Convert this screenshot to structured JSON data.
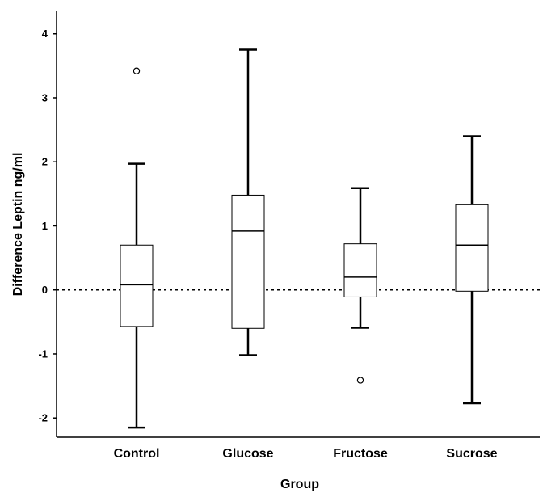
{
  "chart_data": {
    "type": "boxplot",
    "xlabel": "Group",
    "ylabel": "Difference Leptin ng/ml",
    "ylim": [
      -2.3,
      4.35
    ],
    "yticks": [
      -2,
      -1,
      0,
      1,
      2,
      3,
      4
    ],
    "reference_line": {
      "y": 0,
      "style": "dotted"
    },
    "grid": false,
    "categories": [
      "Control",
      "Glucose",
      "Fructose",
      "Sucrose"
    ],
    "boxes": [
      {
        "category": "Control",
        "whisker_low": -2.15,
        "q1": -0.57,
        "median": 0.08,
        "q3": 0.7,
        "whisker_high": 1.97,
        "outliers": [
          3.42
        ]
      },
      {
        "category": "Glucose",
        "whisker_low": -1.02,
        "q1": -0.6,
        "median": 0.92,
        "q3": 1.48,
        "whisker_high": 3.75,
        "outliers": []
      },
      {
        "category": "Fructose",
        "whisker_low": -0.59,
        "q1": -0.11,
        "median": 0.2,
        "q3": 0.72,
        "whisker_high": 1.59,
        "outliers": [
          -1.41
        ]
      },
      {
        "category": "Sucrose",
        "whisker_low": -1.77,
        "q1": -0.02,
        "median": 0.7,
        "q3": 1.33,
        "whisker_high": 2.4,
        "outliers": []
      }
    ]
  }
}
